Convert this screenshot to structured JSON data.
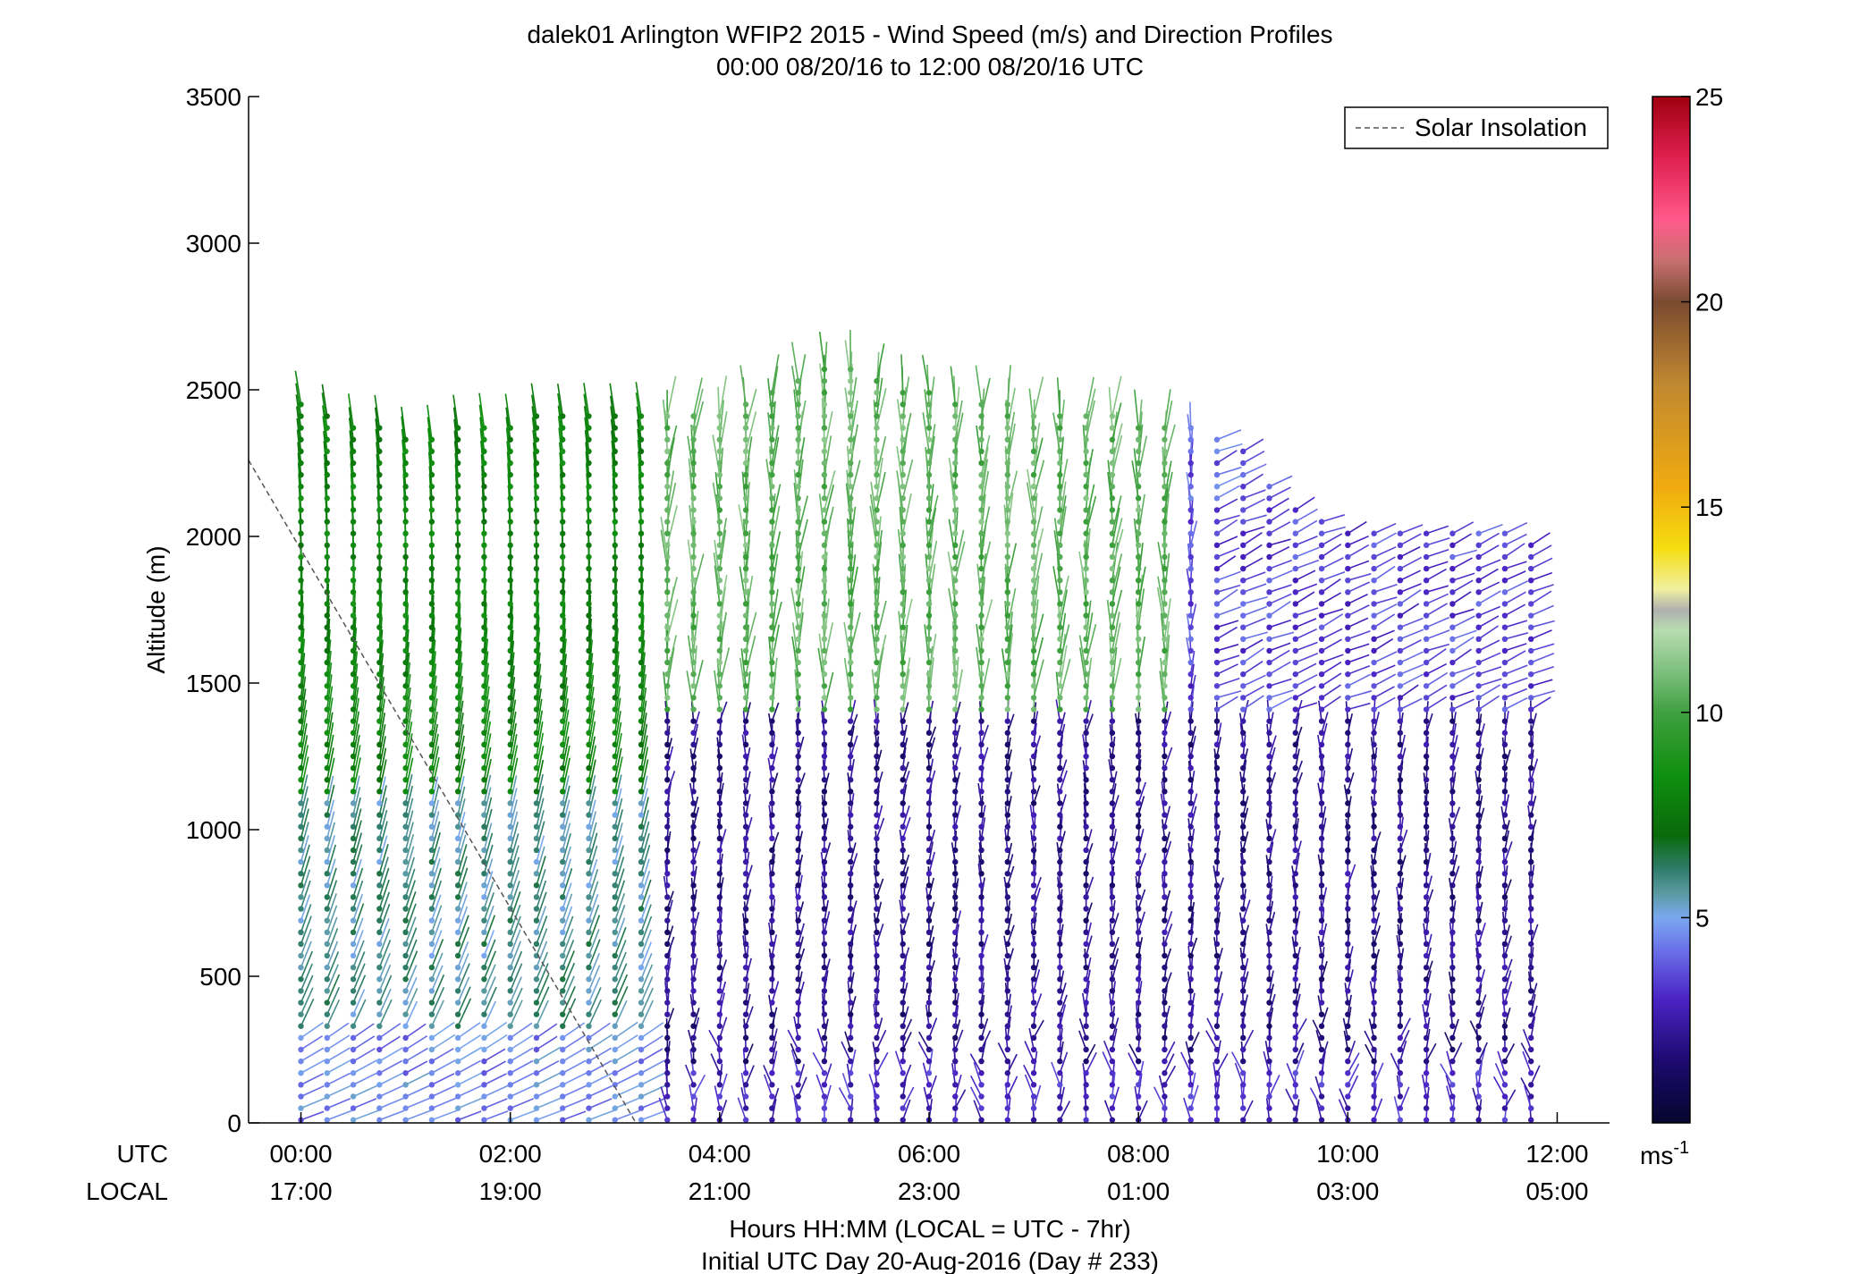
{
  "chart_data": {
    "type": "wind-barb-profile",
    "title": "dalek01 Arlington WFIP2 2015 - Wind Speed (m/s) and Direction Profiles",
    "subtitle": "00:00 08/20/16 to 12:00 08/20/16  UTC",
    "ylabel": "Altitude (m)",
    "xlabel": "Hours HH:MM  (LOCAL = UTC - 7hr)",
    "xlabel2": "Initial UTC Day 20-Aug-2016 (Day # 233)",
    "ylim": [
      0,
      3500
    ],
    "xlim_hours": [
      -0.5,
      12.5
    ],
    "yticks": [
      0,
      500,
      1000,
      1500,
      2000,
      2500,
      3000,
      3500
    ],
    "xticks_utc": [
      "00:00",
      "02:00",
      "04:00",
      "06:00",
      "08:00",
      "10:00",
      "12:00"
    ],
    "xticks_local": [
      "17:00",
      "19:00",
      "21:00",
      "23:00",
      "01:00",
      "03:00",
      "05:00"
    ],
    "row_label_utc": "UTC",
    "row_label_local": "LOCAL",
    "legend": {
      "label": "Solar Insolation",
      "placement": "top-right",
      "style": "dashed"
    },
    "solar_insolation": {
      "hours": [
        -0.5,
        3.2
      ],
      "altitude": [
        2260,
        0
      ]
    },
    "colorbar": {
      "range": [
        0,
        25
      ],
      "ticks": [
        5,
        10,
        15,
        20,
        25
      ],
      "unit_label": "ms",
      "unit_exponent": "-1",
      "stops": [
        {
          "v": 0.0,
          "c": "#05062e"
        },
        {
          "v": 1.5,
          "c": "#1c0a6e"
        },
        {
          "v": 3.0,
          "c": "#4a22c4"
        },
        {
          "v": 4.2,
          "c": "#6a70e8"
        },
        {
          "v": 5.0,
          "c": "#7aa8f0"
        },
        {
          "v": 5.6,
          "c": "#5a9aa0"
        },
        {
          "v": 6.2,
          "c": "#2e7c6a"
        },
        {
          "v": 7.0,
          "c": "#0a6a0a"
        },
        {
          "v": 8.5,
          "c": "#109010"
        },
        {
          "v": 10.0,
          "c": "#40a040"
        },
        {
          "v": 11.0,
          "c": "#7dc07d"
        },
        {
          "v": 12.0,
          "c": "#b8dcb0"
        },
        {
          "v": 12.5,
          "c": "#b0b0b0"
        },
        {
          "v": 13.0,
          "c": "#f0f0a0"
        },
        {
          "v": 14.0,
          "c": "#f5dd10"
        },
        {
          "v": 15.5,
          "c": "#f0aa10"
        },
        {
          "v": 18.0,
          "c": "#c08830"
        },
        {
          "v": 20.0,
          "c": "#7a4a30"
        },
        {
          "v": 21.0,
          "c": "#c87070"
        },
        {
          "v": 22.0,
          "c": "#ff5a8a"
        },
        {
          "v": 23.5,
          "c": "#e02050"
        },
        {
          "v": 25.0,
          "c": "#a00010"
        }
      ]
    },
    "barb_grid": {
      "time_start_h": 0.0,
      "time_end_h": 11.8,
      "time_step_h": 0.25,
      "alt_step_m": 40,
      "top_altitude_by_hour": [
        [
          0.0,
          2480
        ],
        [
          0.5,
          2400
        ],
        [
          1.0,
          2340
        ],
        [
          2.0,
          2400
        ],
        [
          3.0,
          2440
        ],
        [
          4.0,
          2420
        ],
        [
          5.0,
          2600
        ],
        [
          6.0,
          2500
        ],
        [
          7.0,
          2440
        ],
        [
          8.0,
          2400
        ],
        [
          8.5,
          2400
        ],
        [
          9.0,
          2300
        ],
        [
          9.5,
          2100
        ],
        [
          10.0,
          2020
        ],
        [
          11.0,
          2040
        ],
        [
          11.8,
          2000
        ]
      ],
      "speed_regime": [
        {
          "name": "afternoon-low",
          "hours": [
            0,
            3.5
          ],
          "alt": [
            0,
            300
          ],
          "speed": 4.5
        },
        {
          "name": "afternoon-mid",
          "hours": [
            0,
            3.5
          ],
          "alt": [
            300,
            1100
          ],
          "speed": 5.8
        },
        {
          "name": "afternoon-upper",
          "hours": [
            0,
            3.5
          ],
          "alt": [
            1100,
            2600
          ],
          "speed": 8.0
        },
        {
          "name": "evening-upper",
          "hours": [
            3.5,
            8.5
          ],
          "alt": [
            1400,
            2600
          ],
          "speed": 10.5
        },
        {
          "name": "night-mid",
          "hours": [
            3.5,
            12
          ],
          "alt": [
            200,
            1400
          ],
          "speed": 2.0
        },
        {
          "name": "night-low",
          "hours": [
            3.5,
            12
          ],
          "alt": [
            0,
            200
          ],
          "speed": 3.0
        },
        {
          "name": "night-upper",
          "hours": [
            8.5,
            12
          ],
          "alt": [
            1400,
            2100
          ],
          "speed": 3.5
        }
      ]
    }
  }
}
